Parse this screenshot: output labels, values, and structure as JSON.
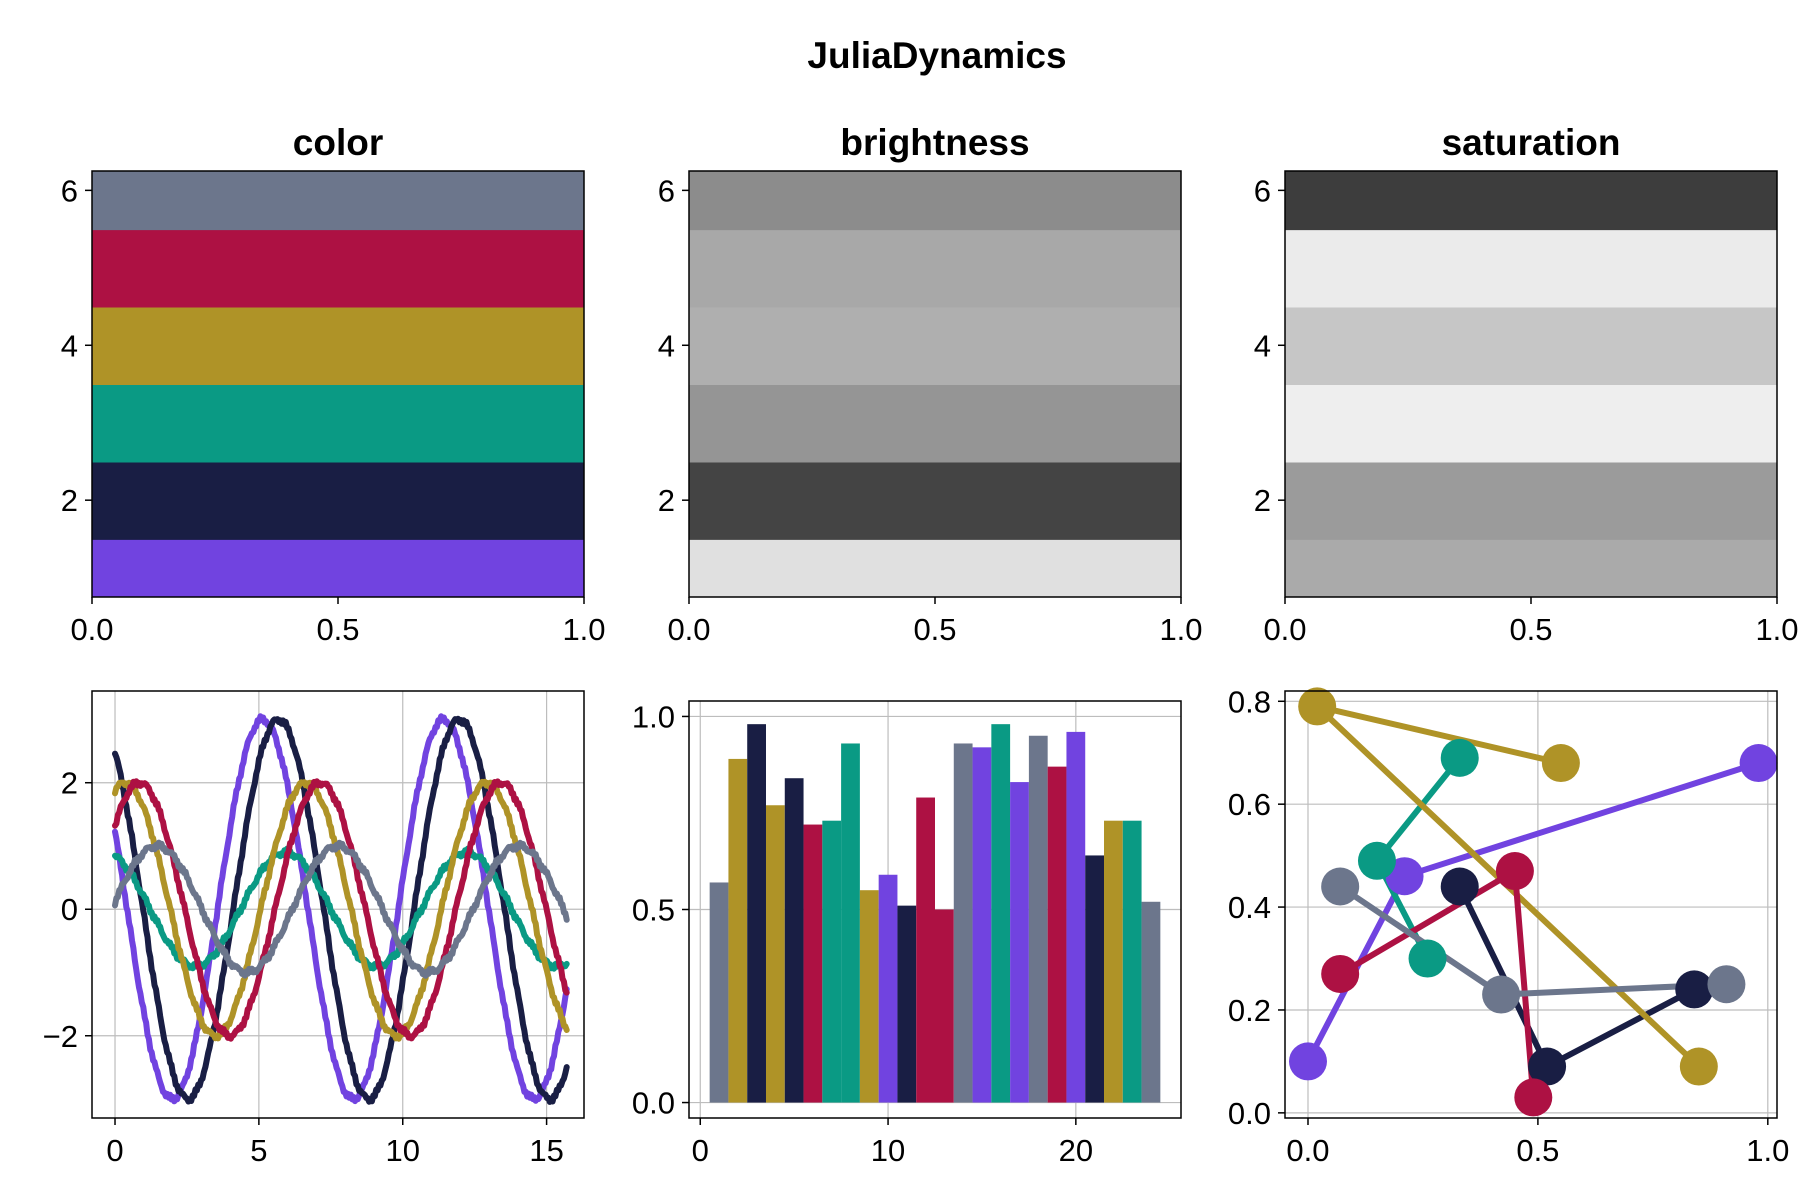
{
  "figure_title": "JuliaDynamics",
  "colors": {
    "palette": [
      "#7143E0",
      "#191E44",
      "#0A9A84",
      "#AF9327",
      "#AD1143",
      "#6C768C"
    ],
    "grid": "#bdbdbd",
    "frame": "#000000"
  },
  "chart_data": [
    {
      "type": "area",
      "title": "color",
      "xlim": [
        0,
        1
      ],
      "ylim": [
        0.75,
        6.25
      ],
      "xticks": [
        "0.0",
        "0.5",
        "1.0"
      ],
      "xtick_values": [
        0,
        0.5,
        1
      ],
      "yticks": [
        "2",
        "4",
        "6"
      ],
      "ytick_values": [
        2,
        4,
        6
      ],
      "grid": false,
      "bands": [
        {
          "y_center": 1,
          "fill": "#7143E0"
        },
        {
          "y_center": 2,
          "fill": "#191E44"
        },
        {
          "y_center": 3,
          "fill": "#0A9A84"
        },
        {
          "y_center": 4,
          "fill": "#AF9327"
        },
        {
          "y_center": 5,
          "fill": "#AD1143"
        },
        {
          "y_center": 6,
          "fill": "#6C768C"
        }
      ]
    },
    {
      "type": "area",
      "title": "brightness",
      "xlim": [
        0,
        1
      ],
      "ylim": [
        0.75,
        6.25
      ],
      "xticks": [
        "0.0",
        "0.5",
        "1.0"
      ],
      "xtick_values": [
        0,
        0.5,
        1
      ],
      "yticks": [
        "2",
        "4",
        "6"
      ],
      "ytick_values": [
        2,
        4,
        6
      ],
      "grid": false,
      "bands": [
        {
          "y_center": 1,
          "fill": "#E0E0E0"
        },
        {
          "y_center": 2,
          "fill": "#444444"
        },
        {
          "y_center": 3,
          "fill": "#959595"
        },
        {
          "y_center": 4,
          "fill": "#AFAFAF"
        },
        {
          "y_center": 5,
          "fill": "#A8A8A8"
        },
        {
          "y_center": 6,
          "fill": "#8C8C8C"
        }
      ]
    },
    {
      "type": "area",
      "title": "saturation",
      "xlim": [
        0,
        1
      ],
      "ylim": [
        0.75,
        6.25
      ],
      "xticks": [
        "0.0",
        "0.5",
        "1.0"
      ],
      "xtick_values": [
        0,
        0.5,
        1
      ],
      "yticks": [
        "2",
        "4",
        "6"
      ],
      "ytick_values": [
        2,
        4,
        6
      ],
      "grid": false,
      "bands": [
        {
          "y_center": 1,
          "fill": "#AAAAAA"
        },
        {
          "y_center": 2,
          "fill": "#9B9B9B"
        },
        {
          "y_center": 3,
          "fill": "#EEEEEE"
        },
        {
          "y_center": 4,
          "fill": "#C6C6C6"
        },
        {
          "y_center": 5,
          "fill": "#EBEBEB"
        },
        {
          "y_center": 6,
          "fill": "#3D3D3D"
        }
      ]
    },
    {
      "type": "line",
      "title": "",
      "xlim": [
        -0.8,
        16.3
      ],
      "ylim": [
        -3.3,
        3.45
      ],
      "xticks": [
        "0",
        "5",
        "10",
        "15"
      ],
      "xtick_values": [
        0,
        5,
        10,
        15
      ],
      "yticks": [
        "−2",
        "0",
        "2"
      ],
      "ytick_values": [
        -2,
        0,
        2
      ],
      "grid": true,
      "x_range": [
        0,
        15.7
      ],
      "series": [
        {
          "color": "#7143E0",
          "amplitude": 3.0,
          "phase": 1.15
        },
        {
          "color": "#191E44",
          "amplitude": 3.0,
          "phase": 0.6
        },
        {
          "color": "#0A9A84",
          "amplitude": 0.9,
          "phase": 0.35
        },
        {
          "color": "#AF9327",
          "amplitude": 2.0,
          "phase": -0.35
        },
        {
          "color": "#AD1143",
          "amplitude": 2.0,
          "phase": -0.85
        },
        {
          "color": "#6C768C",
          "amplitude": 1.0,
          "phase": -1.45
        }
      ]
    },
    {
      "type": "bar",
      "title": "",
      "xlim": [
        -0.6,
        25.6
      ],
      "ylim": [
        -0.04,
        1.04
      ],
      "xticks": [
        "0",
        "10",
        "20"
      ],
      "xtick_values": [
        0,
        10,
        20
      ],
      "yticks": [
        "0.0",
        "0.5",
        "1.0"
      ],
      "ytick_values": [
        0,
        0.5,
        1
      ],
      "grid": true,
      "categories": [
        1,
        2,
        3,
        4,
        5,
        6,
        7,
        8,
        9,
        10,
        11,
        12,
        13,
        14,
        15,
        16,
        17,
        18,
        19,
        20,
        21,
        22,
        23,
        24
      ],
      "values": [
        0.57,
        0.89,
        0.98,
        0.77,
        0.84,
        0.72,
        0.73,
        0.93,
        0.55,
        0.59,
        0.51,
        0.79,
        0.5,
        0.93,
        0.92,
        0.98,
        0.83,
        0.95,
        0.87,
        0.96,
        0.64,
        0.73,
        0.73,
        0.52
      ],
      "bar_colors": [
        "#6C768C",
        "#AF9327",
        "#191E44",
        "#AF9327",
        "#191E44",
        "#AD1143",
        "#0A9A84",
        "#0A9A84",
        "#AF9327",
        "#7143E0",
        "#191E44",
        "#AD1143",
        "#AD1143",
        "#6C768C",
        "#7143E0",
        "#0A9A84",
        "#7143E0",
        "#6C768C",
        "#AD1143",
        "#7143E0",
        "#191E44",
        "#AF9327",
        "#0A9A84",
        "#6C768C"
      ]
    },
    {
      "type": "scatter",
      "title": "",
      "xlim": [
        -0.05,
        1.02
      ],
      "ylim": [
        -0.01,
        0.82
      ],
      "xticks": [
        "0.0",
        "0.5",
        "1.0"
      ],
      "xtick_values": [
        0,
        0.5,
        1
      ],
      "yticks": [
        "0.0",
        "0.2",
        "0.4",
        "0.6",
        "0.8"
      ],
      "ytick_values": [
        0,
        0.2,
        0.4,
        0.6,
        0.8
      ],
      "grid": true,
      "series": [
        {
          "color": "#7143E0",
          "x": [
            0.0,
            0.21,
            0.98
          ],
          "y": [
            0.1,
            0.46,
            0.68
          ]
        },
        {
          "color": "#191E44",
          "x": [
            0.33,
            0.52,
            0.84
          ],
          "y": [
            0.44,
            0.09,
            0.24
          ]
        },
        {
          "color": "#0A9A84",
          "x": [
            0.33,
            0.15,
            0.26
          ],
          "y": [
            0.69,
            0.49,
            0.3
          ]
        },
        {
          "color": "#AF9327",
          "x": [
            0.55,
            0.02,
            0.85
          ],
          "y": [
            0.68,
            0.79,
            0.09
          ]
        },
        {
          "color": "#AD1143",
          "x": [
            0.07,
            0.45,
            0.49
          ],
          "y": [
            0.27,
            0.47,
            0.03
          ]
        },
        {
          "color": "#6C768C",
          "x": [
            0.07,
            0.42,
            0.91
          ],
          "y": [
            0.44,
            0.23,
            0.25
          ]
        }
      ]
    }
  ]
}
